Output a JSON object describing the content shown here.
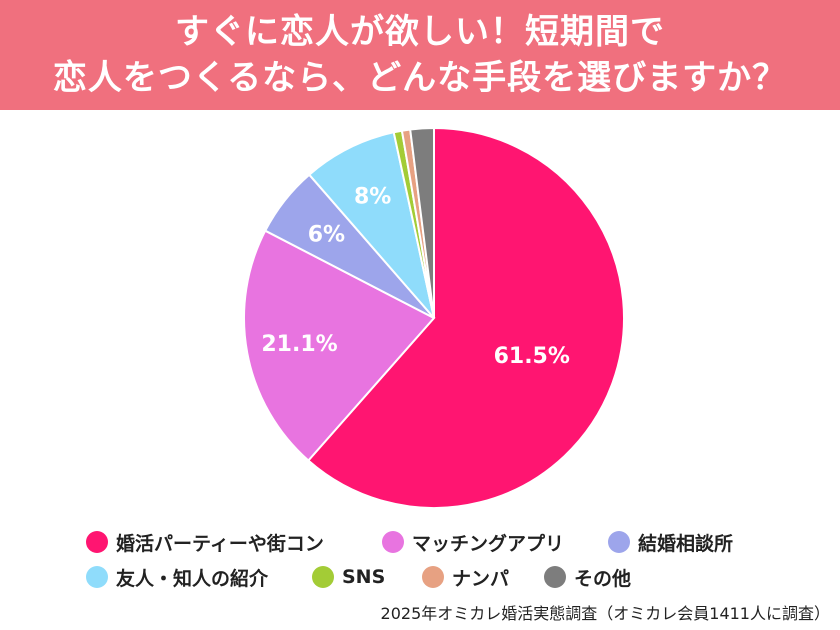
{
  "header": {
    "title_line1": "すぐに恋人が欲しい！短期間で",
    "title_line2": "恋人をつくるなら、どんな手段を選びますか？"
  },
  "chart_data": {
    "type": "pie",
    "title": "すぐに恋人が欲しい！短期間で恋人をつくるなら、どんな手段を選びますか？",
    "slices": [
      {
        "label": "婚活パーティーや街コン",
        "value": 61.5,
        "display": "61.5%",
        "color": "#ff1571"
      },
      {
        "label": "マッチングアプリ",
        "value": 21.1,
        "display": "21.1%",
        "color": "#e874e0"
      },
      {
        "label": "結婚相談所",
        "value": 6,
        "display": "6%",
        "color": "#9da5eb"
      },
      {
        "label": "友人・知人の紹介",
        "value": 8,
        "display": "8%",
        "color": "#8fdcfb"
      },
      {
        "label": "SNS",
        "value": 0.7,
        "display": "",
        "color": "#a3cc36"
      },
      {
        "label": "ナンパ",
        "value": 0.7,
        "display": "",
        "color": "#e7a182"
      },
      {
        "label": "その他",
        "value": 2,
        "display": "",
        "color": "#7d7d7d"
      }
    ],
    "legend_placement": "bottom"
  },
  "legend": {
    "row1": [
      {
        "label": "婚活パーティーや街コン",
        "color": "#ff1571"
      },
      {
        "label": "マッチングアプリ",
        "color": "#e874e0"
      },
      {
        "label": "結婚相談所",
        "color": "#9da5eb"
      }
    ],
    "row2": [
      {
        "label": "友人・知人の紹介",
        "color": "#8fdcfb"
      },
      {
        "label": "SNS",
        "color": "#a3cc36"
      },
      {
        "label": "ナンパ",
        "color": "#e7a182"
      },
      {
        "label": "その他",
        "color": "#7d7d7d"
      }
    ]
  },
  "source": "2025年オミカレ婚活実態調査（オミカレ会員1411人に調査）"
}
